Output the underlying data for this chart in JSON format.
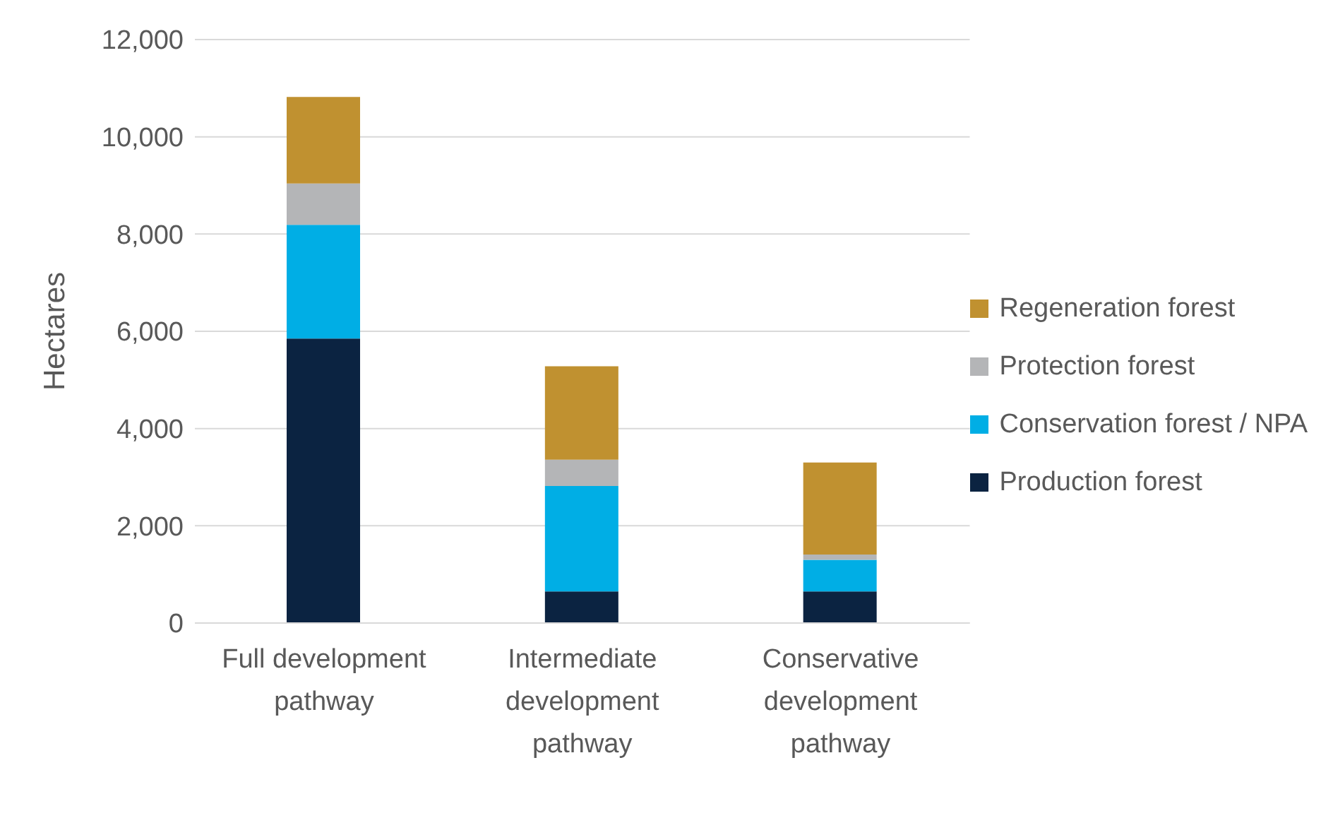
{
  "chart_data": {
    "type": "bar",
    "stacked": true,
    "ylabel": "Hectares",
    "categories": [
      "Full development pathway",
      "Intermediate development pathway",
      "Conservative development pathway"
    ],
    "series": [
      {
        "name": "Production forest",
        "color": "#0b2341",
        "values": [
          5850,
          650,
          650
        ]
      },
      {
        "name": "Conservation forest / NPA",
        "color": "#00aee5",
        "values": [
          2340,
          2170,
          650
        ]
      },
      {
        "name": "Protection forest",
        "color": "#b4b5b7",
        "values": [
          850,
          540,
          110
        ]
      },
      {
        "name": "Regeneration forest",
        "color": "#c09130",
        "values": [
          1780,
          1920,
          1890
        ]
      }
    ],
    "ylim": [
      0,
      12000
    ],
    "yticks": [
      0,
      {
        "value": 2000,
        "label": "2,000"
      },
      {
        "value": 4000,
        "label": "4,000"
      },
      {
        "value": 6000,
        "label": "6,000"
      },
      {
        "value": 8000,
        "label": "8,000"
      },
      {
        "value": 10000,
        "label": "10,000"
      },
      {
        "value": 12000,
        "label": "12,000"
      }
    ],
    "grid": "y",
    "legend": "right"
  }
}
